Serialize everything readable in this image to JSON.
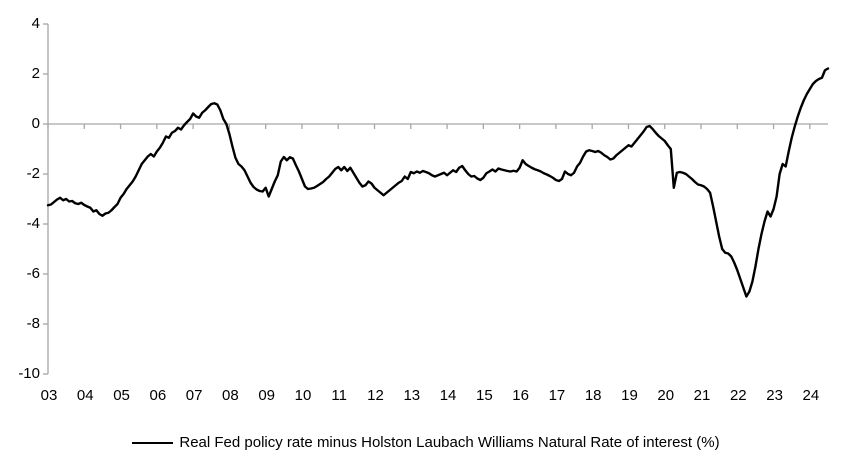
{
  "chart_data": {
    "type": "line",
    "title": "",
    "xlabel": "",
    "ylabel": "",
    "xlim": [
      2003,
      2024.5
    ],
    "ylim": [
      -10,
      4
    ],
    "grid": "zero-line-only",
    "legend_position": "bottom-center",
    "axis_color": "#a6a6a6",
    "y_ticks": [
      4,
      2,
      0,
      -2,
      -4,
      -6,
      -8,
      -10
    ],
    "y_tick_labels": [
      "4",
      "2",
      "0",
      "-2",
      "-4",
      "-6",
      "-8",
      "-10"
    ],
    "x_tick_years": [
      2003,
      2004,
      2005,
      2006,
      2007,
      2008,
      2009,
      2010,
      2011,
      2012,
      2013,
      2014,
      2015,
      2016,
      2017,
      2018,
      2019,
      2020,
      2021,
      2022,
      2023,
      2024
    ],
    "x_tick_labels": [
      "03",
      "04",
      "05",
      "06",
      "07",
      "08",
      "09",
      "10",
      "11",
      "12",
      "13",
      "14",
      "15",
      "16",
      "17",
      "18",
      "19",
      "20",
      "21",
      "22",
      "23",
      "24"
    ],
    "series": [
      {
        "name": "Real Fed policy rate minus Holston Laubach Williams Natural Rate of interest (%)",
        "color": "#000000",
        "x_start": 2003.0,
        "x_step": 0.0833333,
        "values": [
          -3.25,
          -3.22,
          -3.12,
          -3.02,
          -2.95,
          -3.05,
          -3.0,
          -3.1,
          -3.08,
          -3.17,
          -3.2,
          -3.15,
          -3.24,
          -3.3,
          -3.35,
          -3.5,
          -3.45,
          -3.6,
          -3.67,
          -3.58,
          -3.55,
          -3.45,
          -3.32,
          -3.2,
          -2.95,
          -2.8,
          -2.6,
          -2.45,
          -2.3,
          -2.1,
          -1.85,
          -1.6,
          -1.45,
          -1.3,
          -1.2,
          -1.3,
          -1.1,
          -0.95,
          -0.75,
          -0.5,
          -0.55,
          -0.35,
          -0.28,
          -0.15,
          -0.22,
          -0.05,
          0.08,
          0.2,
          0.42,
          0.3,
          0.25,
          0.45,
          0.55,
          0.68,
          0.8,
          0.83,
          0.78,
          0.55,
          0.2,
          0.0,
          -0.4,
          -0.9,
          -1.35,
          -1.6,
          -1.7,
          -1.85,
          -2.1,
          -2.35,
          -2.52,
          -2.62,
          -2.68,
          -2.7,
          -2.55,
          -2.9,
          -2.6,
          -2.3,
          -2.05,
          -1.5,
          -1.32,
          -1.45,
          -1.33,
          -1.38,
          -1.65,
          -1.9,
          -2.2,
          -2.5,
          -2.6,
          -2.58,
          -2.55,
          -2.48,
          -2.4,
          -2.32,
          -2.2,
          -2.1,
          -1.95,
          -1.8,
          -1.72,
          -1.85,
          -1.72,
          -1.88,
          -1.75,
          -1.95,
          -2.15,
          -2.35,
          -2.5,
          -2.45,
          -2.3,
          -2.38,
          -2.55,
          -2.65,
          -2.75,
          -2.85,
          -2.75,
          -2.65,
          -2.55,
          -2.45,
          -2.35,
          -2.28,
          -2.1,
          -2.2,
          -1.92,
          -1.97,
          -1.9,
          -1.95,
          -1.88,
          -1.92,
          -1.97,
          -2.05,
          -2.1,
          -2.05,
          -2.0,
          -1.95,
          -2.05,
          -1.95,
          -1.85,
          -1.92,
          -1.75,
          -1.68,
          -1.85,
          -2.0,
          -2.1,
          -2.08,
          -2.18,
          -2.24,
          -2.15,
          -1.97,
          -1.9,
          -1.82,
          -1.9,
          -1.78,
          -1.82,
          -1.85,
          -1.88,
          -1.9,
          -1.87,
          -1.9,
          -1.75,
          -1.45,
          -1.6,
          -1.68,
          -1.75,
          -1.81,
          -1.85,
          -1.9,
          -1.97,
          -2.02,
          -2.08,
          -2.15,
          -2.24,
          -2.28,
          -2.2,
          -1.9,
          -2.0,
          -2.05,
          -1.95,
          -1.7,
          -1.55,
          -1.3,
          -1.1,
          -1.05,
          -1.08,
          -1.12,
          -1.08,
          -1.15,
          -1.25,
          -1.32,
          -1.42,
          -1.38,
          -1.25,
          -1.15,
          -1.05,
          -0.95,
          -0.85,
          -0.9,
          -0.75,
          -0.6,
          -0.45,
          -0.3,
          -0.12,
          -0.08,
          -0.2,
          -0.35,
          -0.48,
          -0.58,
          -0.68,
          -0.85,
          -1.0,
          -2.55,
          -1.95,
          -1.92,
          -1.95,
          -2.0,
          -2.1,
          -2.2,
          -2.32,
          -2.42,
          -2.45,
          -2.5,
          -2.6,
          -2.75,
          -3.3,
          -3.9,
          -4.5,
          -5.0,
          -5.15,
          -5.18,
          -5.3,
          -5.55,
          -5.85,
          -6.2,
          -6.55,
          -6.9,
          -6.7,
          -6.3,
          -5.7,
          -5.0,
          -4.4,
          -3.9,
          -3.5,
          -3.7,
          -3.4,
          -2.9,
          -2.0,
          -1.6,
          -1.7,
          -1.1,
          -0.55,
          -0.1,
          0.3,
          0.65,
          0.95,
          1.2,
          1.4,
          1.6,
          1.72,
          1.8,
          1.85,
          2.15,
          2.22
        ]
      }
    ]
  },
  "legend": {
    "label": "Real Fed policy rate minus Holston Laubach Williams Natural Rate of interest (%)"
  }
}
